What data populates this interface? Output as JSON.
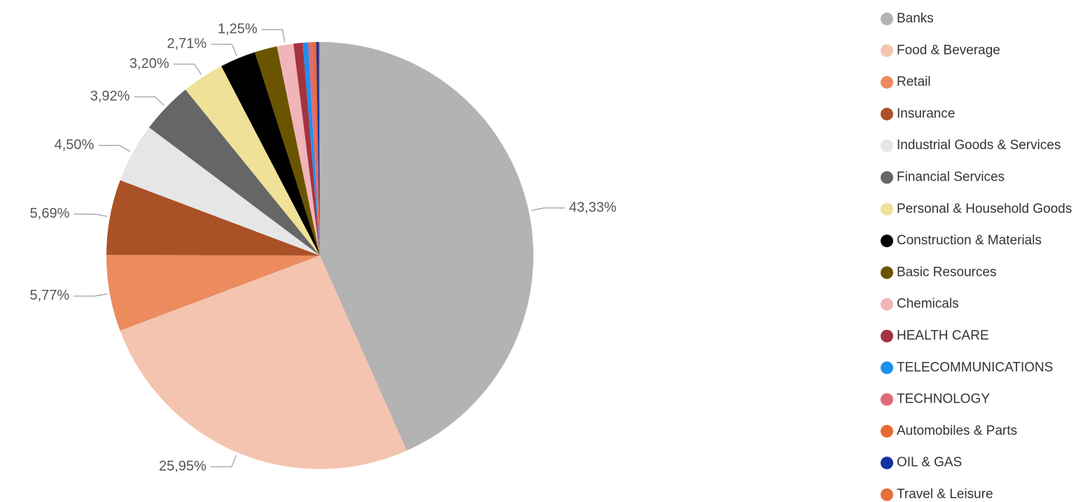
{
  "chart_data": {
    "type": "pie",
    "categories": [
      "Banks",
      "Food & Beverage",
      "Retail",
      "Insurance",
      "Industrial Goods & Services",
      "Financial Services",
      "Personal & Household Goods",
      "Construction & Materials",
      "Basic Resources",
      "Chemicals",
      "HEALTH CARE",
      "TELECOMMUNICATIONS",
      "TECHNOLOGY",
      "Automobiles & Parts",
      "OIL & GAS",
      "Travel & Leisure"
    ],
    "values": [
      43.33,
      25.95,
      5.77,
      5.69,
      4.5,
      3.92,
      3.2,
      2.71,
      1.7,
      1.25,
      0.7,
      0.4,
      0.3,
      0.3,
      0.2,
      0.08
    ],
    "value_labels": [
      "43,33%",
      "25,95%",
      "5,77%",
      "5,69%",
      "4,50%",
      "3,92%",
      "3,20%",
      "2,71%",
      null,
      "1,25%",
      null,
      null,
      null,
      null,
      null,
      null
    ],
    "colors": [
      "#b3b3b3",
      "#f4c4b0",
      "#ec8b5e",
      "#ab5127",
      "#e6e6e6",
      "#666666",
      "#f0e199",
      "#000000",
      "#6b5400",
      "#f0b5b8",
      "#a5323f",
      "#1e90f0",
      "#e06a78",
      "#e86a33",
      "#1432a0",
      "#e6703c"
    ],
    "legend": "right"
  }
}
